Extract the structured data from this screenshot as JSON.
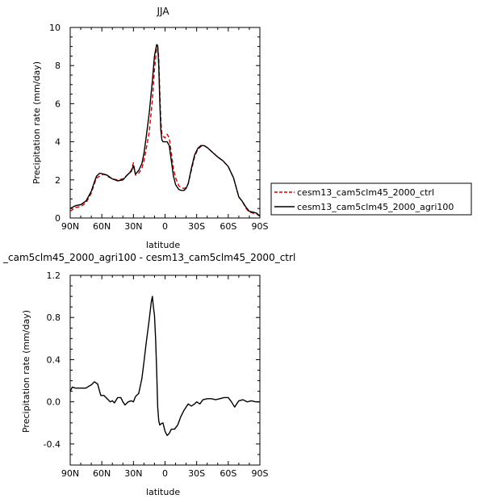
{
  "chart_data": [
    {
      "type": "line",
      "title": "JJA",
      "xlabel": "latitude",
      "ylabel": "Precipitation rate (mm/day)",
      "xlim": [
        90,
        -90
      ],
      "ylim": [
        0,
        10
      ],
      "xticks": [
        90,
        60,
        30,
        0,
        -30,
        -60,
        -90
      ],
      "xtick_labels": [
        "90N",
        "60N",
        "30N",
        "0",
        "30S",
        "60S",
        "90S"
      ],
      "yticks": [
        0,
        2,
        4,
        6,
        8,
        10
      ],
      "ytick_labels": [
        "0",
        "2",
        "4",
        "6",
        "8",
        "10"
      ],
      "legend": "right",
      "series": [
        {
          "name": "cesm13_cam5clm45_2000_ctrl",
          "color": "#cc0000",
          "dash": "dashed",
          "points": [
            [
              90,
              0.35
            ],
            [
              85,
              0.55
            ],
            [
              80,
              0.6
            ],
            [
              75,
              0.8
            ],
            [
              70,
              1.3
            ],
            [
              67,
              1.8
            ],
            [
              65,
              2.1
            ],
            [
              62,
              2.2
            ],
            [
              58,
              2.3
            ],
            [
              55,
              2.2
            ],
            [
              50,
              2.05
            ],
            [
              45,
              2.0
            ],
            [
              40,
              2.05
            ],
            [
              35,
              2.3
            ],
            [
              32,
              2.5
            ],
            [
              30,
              2.9
            ],
            [
              28,
              2.25
            ],
            [
              25,
              2.35
            ],
            [
              22,
              2.6
            ],
            [
              20,
              3.0
            ],
            [
              18,
              3.6
            ],
            [
              15,
              4.5
            ],
            [
              12,
              6.2
            ],
            [
              10,
              7.8
            ],
            [
              8,
              8.9
            ],
            [
              7,
              9.0
            ],
            [
              6,
              8.4
            ],
            [
              5,
              6.6
            ],
            [
              4,
              5.1
            ],
            [
              3,
              4.4
            ],
            [
              2,
              4.3
            ],
            [
              0,
              4.2
            ],
            [
              -2,
              4.4
            ],
            [
              -4,
              4.2
            ],
            [
              -6,
              3.4
            ],
            [
              -8,
              2.6
            ],
            [
              -10,
              2.1
            ],
            [
              -13,
              1.7
            ],
            [
              -15,
              1.6
            ],
            [
              -18,
              1.55
            ],
            [
              -20,
              1.6
            ],
            [
              -22,
              1.8
            ],
            [
              -25,
              2.5
            ],
            [
              -28,
              3.2
            ],
            [
              -31,
              3.6
            ],
            [
              -34,
              3.75
            ],
            [
              -37,
              3.8
            ],
            [
              -40,
              3.7
            ],
            [
              -45,
              3.45
            ],
            [
              -50,
              3.2
            ],
            [
              -55,
              3.0
            ],
            [
              -60,
              2.7
            ],
            [
              -65,
              2.1
            ],
            [
              -70,
              1.1
            ],
            [
              -73,
              0.9
            ],
            [
              -77,
              0.5
            ],
            [
              -80,
              0.3
            ],
            [
              -84,
              0.25
            ],
            [
              -87,
              0.2
            ],
            [
              -90,
              0.1
            ]
          ]
        },
        {
          "name": "cesm13_cam5clm45_2000_agri100",
          "color": "#000000",
          "dash": "solid",
          "points": [
            [
              90,
              0.5
            ],
            [
              85,
              0.65
            ],
            [
              80,
              0.7
            ],
            [
              75,
              0.9
            ],
            [
              70,
              1.4
            ],
            [
              67,
              1.9
            ],
            [
              65,
              2.2
            ],
            [
              62,
              2.35
            ],
            [
              58,
              2.3
            ],
            [
              55,
              2.25
            ],
            [
              50,
              2.05
            ],
            [
              45,
              1.95
            ],
            [
              40,
              2.0
            ],
            [
              35,
              2.3
            ],
            [
              32,
              2.45
            ],
            [
              30,
              2.75
            ],
            [
              28,
              2.3
            ],
            [
              25,
              2.5
            ],
            [
              22,
              2.85
            ],
            [
              20,
              3.4
            ],
            [
              18,
              4.2
            ],
            [
              15,
              5.5
            ],
            [
              12,
              7.2
            ],
            [
              10,
              8.5
            ],
            [
              8,
              9.1
            ],
            [
              7,
              9.05
            ],
            [
              6,
              8.0
            ],
            [
              5,
              6.1
            ],
            [
              4,
              4.6
            ],
            [
              3,
              4.1
            ],
            [
              2,
              4.0
            ],
            [
              0,
              4.0
            ],
            [
              -2,
              4.0
            ],
            [
              -4,
              3.8
            ],
            [
              -6,
              3.0
            ],
            [
              -8,
              2.2
            ],
            [
              -10,
              1.75
            ],
            [
              -13,
              1.5
            ],
            [
              -15,
              1.45
            ],
            [
              -18,
              1.45
            ],
            [
              -20,
              1.55
            ],
            [
              -22,
              1.8
            ],
            [
              -25,
              2.6
            ],
            [
              -28,
              3.3
            ],
            [
              -31,
              3.65
            ],
            [
              -34,
              3.8
            ],
            [
              -37,
              3.8
            ],
            [
              -40,
              3.7
            ],
            [
              -45,
              3.45
            ],
            [
              -50,
              3.2
            ],
            [
              -55,
              3.0
            ],
            [
              -60,
              2.7
            ],
            [
              -65,
              2.1
            ],
            [
              -70,
              1.1
            ],
            [
              -73,
              0.9
            ],
            [
              -77,
              0.55
            ],
            [
              -80,
              0.35
            ],
            [
              -84,
              0.3
            ],
            [
              -87,
              0.25
            ],
            [
              -90,
              0.1
            ]
          ]
        }
      ]
    },
    {
      "type": "line",
      "title": "_cam5clm45_2000_agri100 - cesm13_cam5clm45_2000_ctrl",
      "xlabel": "latitude",
      "ylabel": "Precipitation rate (mm/day)",
      "xlim": [
        90,
        -90
      ],
      "ylim": [
        -0.6,
        1.2
      ],
      "xticks": [
        90,
        60,
        30,
        0,
        -30,
        -60,
        -90
      ],
      "xtick_labels": [
        "90N",
        "60N",
        "30N",
        "0",
        "30S",
        "60S",
        "90S"
      ],
      "yticks": [
        -0.4,
        0.0,
        0.4,
        0.8,
        1.2
      ],
      "ytick_labels": [
        "-0.4",
        "0.0",
        "0.4",
        "0.8",
        "1.2"
      ],
      "series": [
        {
          "name": "",
          "color": "#000000",
          "dash": "solid",
          "points": [
            [
              90,
              0.1
            ],
            [
              88,
              0.14
            ],
            [
              85,
              0.13
            ],
            [
              80,
              0.13
            ],
            [
              75,
              0.13
            ],
            [
              72,
              0.15
            ],
            [
              70,
              0.16
            ],
            [
              67,
              0.19
            ],
            [
              64,
              0.17
            ],
            [
              61,
              0.06
            ],
            [
              58,
              0.06
            ],
            [
              55,
              0.03
            ],
            [
              52,
              0.0
            ],
            [
              50,
              0.01
            ],
            [
              48,
              -0.01
            ],
            [
              45,
              0.04
            ],
            [
              42,
              0.04
            ],
            [
              40,
              0.0
            ],
            [
              38,
              -0.03
            ],
            [
              35,
              0.0
            ],
            [
              32,
              0.01
            ],
            [
              30,
              0.0
            ],
            [
              28,
              0.05
            ],
            [
              25,
              0.08
            ],
            [
              22,
              0.22
            ],
            [
              20,
              0.38
            ],
            [
              18,
              0.55
            ],
            [
              15,
              0.78
            ],
            [
              13,
              0.95
            ],
            [
              12,
              1.0
            ],
            [
              11,
              0.9
            ],
            [
              10,
              0.82
            ],
            [
              9,
              0.6
            ],
            [
              8,
              0.3
            ],
            [
              7,
              -0.05
            ],
            [
              6,
              -0.18
            ],
            [
              5,
              -0.22
            ],
            [
              4,
              -0.21
            ],
            [
              2,
              -0.2
            ],
            [
              0,
              -0.28
            ],
            [
              -2,
              -0.32
            ],
            [
              -4,
              -0.3
            ],
            [
              -6,
              -0.26
            ],
            [
              -9,
              -0.26
            ],
            [
              -12,
              -0.22
            ],
            [
              -15,
              -0.14
            ],
            [
              -18,
              -0.08
            ],
            [
              -22,
              -0.02
            ],
            [
              -25,
              -0.04
            ],
            [
              -28,
              -0.02
            ],
            [
              -30,
              0.0
            ],
            [
              -33,
              -0.02
            ],
            [
              -36,
              0.02
            ],
            [
              -40,
              0.03
            ],
            [
              -44,
              0.03
            ],
            [
              -48,
              0.02
            ],
            [
              -52,
              0.03
            ],
            [
              -56,
              0.04
            ],
            [
              -60,
              0.04
            ],
            [
              -63,
              0.0
            ],
            [
              -66,
              -0.05
            ],
            [
              -70,
              0.01
            ],
            [
              -74,
              0.02
            ],
            [
              -78,
              0.0
            ],
            [
              -82,
              0.01
            ],
            [
              -86,
              0.0
            ],
            [
              -90,
              0.0
            ]
          ]
        }
      ]
    }
  ]
}
